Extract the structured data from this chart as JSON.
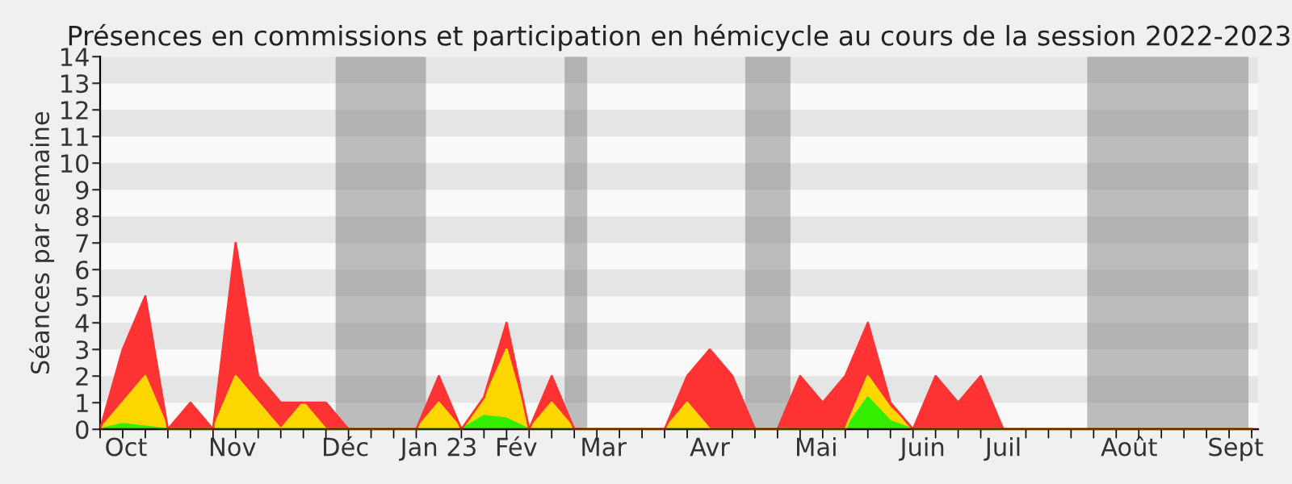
{
  "chart_data": {
    "type": "area",
    "stacked": true,
    "title": "Présences en commissions et participation en hémicycle au cours de la session 2022-2023",
    "ylabel": "Séances par semaine",
    "x": [
      "2022-09-26",
      "2022-10-03",
      "2022-10-10",
      "2022-10-17",
      "2022-10-24",
      "2022-10-31",
      "2022-11-07",
      "2022-11-14",
      "2022-11-21",
      "2022-11-28",
      "2022-12-05",
      "2022-12-12",
      "2022-12-19",
      "2022-12-26",
      "2023-01-02",
      "2023-01-09",
      "2023-01-16",
      "2023-01-23",
      "2023-01-30",
      "2023-02-06",
      "2023-02-13",
      "2023-02-20",
      "2023-02-27",
      "2023-03-06",
      "2023-03-13",
      "2023-03-20",
      "2023-03-27",
      "2023-04-03",
      "2023-04-10",
      "2023-04-17",
      "2023-04-24",
      "2023-05-01",
      "2023-05-08",
      "2023-05-15",
      "2023-05-22",
      "2023-05-29",
      "2023-06-05",
      "2023-06-12",
      "2023-06-19",
      "2023-06-26",
      "2023-07-03",
      "2023-07-10",
      "2023-07-17",
      "2023-07-24",
      "2023-07-31",
      "2023-08-07",
      "2023-08-14",
      "2023-08-21",
      "2023-08-28",
      "2023-09-04",
      "2023-09-11",
      "2023-09-18"
    ],
    "series": [
      {
        "color": "#33ee00",
        "values": [
          0,
          0.2,
          0.1,
          0,
          0,
          0,
          0,
          0,
          0,
          0,
          0,
          0,
          0,
          0,
          0,
          0,
          0,
          0.5,
          0.4,
          0,
          0,
          0,
          0,
          0,
          0,
          0,
          0,
          0,
          0,
          0,
          0,
          0,
          0,
          0,
          1.2,
          0.3,
          0,
          0,
          0,
          0,
          0,
          0,
          0,
          0,
          0,
          0,
          0,
          0,
          0,
          0,
          0,
          0
        ]
      },
      {
        "color": "#ffd700",
        "values": [
          0,
          0.8,
          1.9,
          0,
          0,
          0,
          2,
          1,
          0,
          1,
          0,
          0,
          0,
          0,
          0,
          1,
          0,
          0.6,
          2.6,
          0,
          1,
          0,
          0,
          0,
          0,
          0,
          1,
          0,
          0,
          0,
          0,
          0,
          0,
          0,
          0.8,
          0.5,
          0,
          0,
          0,
          0,
          0,
          0,
          0,
          0,
          0,
          0,
          0,
          0,
          0,
          0,
          0,
          0
        ]
      },
      {
        "color": "#ff3333",
        "values": [
          0,
          2,
          3,
          0,
          1,
          0,
          5,
          1,
          1,
          0,
          1,
          0,
          0,
          0,
          0,
          1,
          0,
          0.1,
          1,
          0,
          1,
          0,
          0,
          0,
          0,
          0,
          1,
          3,
          2,
          0,
          0,
          2,
          1,
          2,
          2,
          0.2,
          0,
          2,
          1,
          2,
          0,
          0,
          0,
          0,
          0,
          0,
          0,
          0,
          0,
          0,
          0,
          0
        ]
      }
    ],
    "xlim": [
      "2022-09-26",
      "2023-09-20"
    ],
    "xticks": [
      {
        "value": "2022-10-04",
        "label": "Oct"
      },
      {
        "value": "2022-11-06",
        "label": "Nov"
      },
      {
        "value": "2022-12-11",
        "label": "Déc"
      },
      {
        "value": "2023-01-09",
        "label": "Jan 23"
      },
      {
        "value": "2023-02-02",
        "label": "Fév"
      },
      {
        "value": "2023-03-01",
        "label": "Mar"
      },
      {
        "value": "2023-04-03",
        "label": "Avr"
      },
      {
        "value": "2023-05-06",
        "label": "Mai"
      },
      {
        "value": "2023-06-08",
        "label": "Juin"
      },
      {
        "value": "2023-07-03",
        "label": "Juil"
      },
      {
        "value": "2023-08-11",
        "label": "Août"
      },
      {
        "value": "2023-09-13",
        "label": "Sept"
      }
    ],
    "ylim": [
      0,
      14
    ],
    "yticks": [
      0,
      1,
      2,
      3,
      4,
      5,
      6,
      7,
      8,
      9,
      10,
      11,
      12,
      13,
      14
    ],
    "bands": [
      {
        "axis": "x",
        "from": "2022-12-08",
        "to": "2023-01-05",
        "color": "#808080"
      },
      {
        "axis": "x",
        "from": "2023-02-17",
        "to": "2023-02-24",
        "color": "#808080"
      },
      {
        "axis": "x",
        "from": "2023-04-14",
        "to": "2023-04-28",
        "color": "#808080"
      },
      {
        "axis": "x",
        "from": "2023-07-29",
        "to": "2023-09-17",
        "color": "#808080"
      }
    ]
  }
}
